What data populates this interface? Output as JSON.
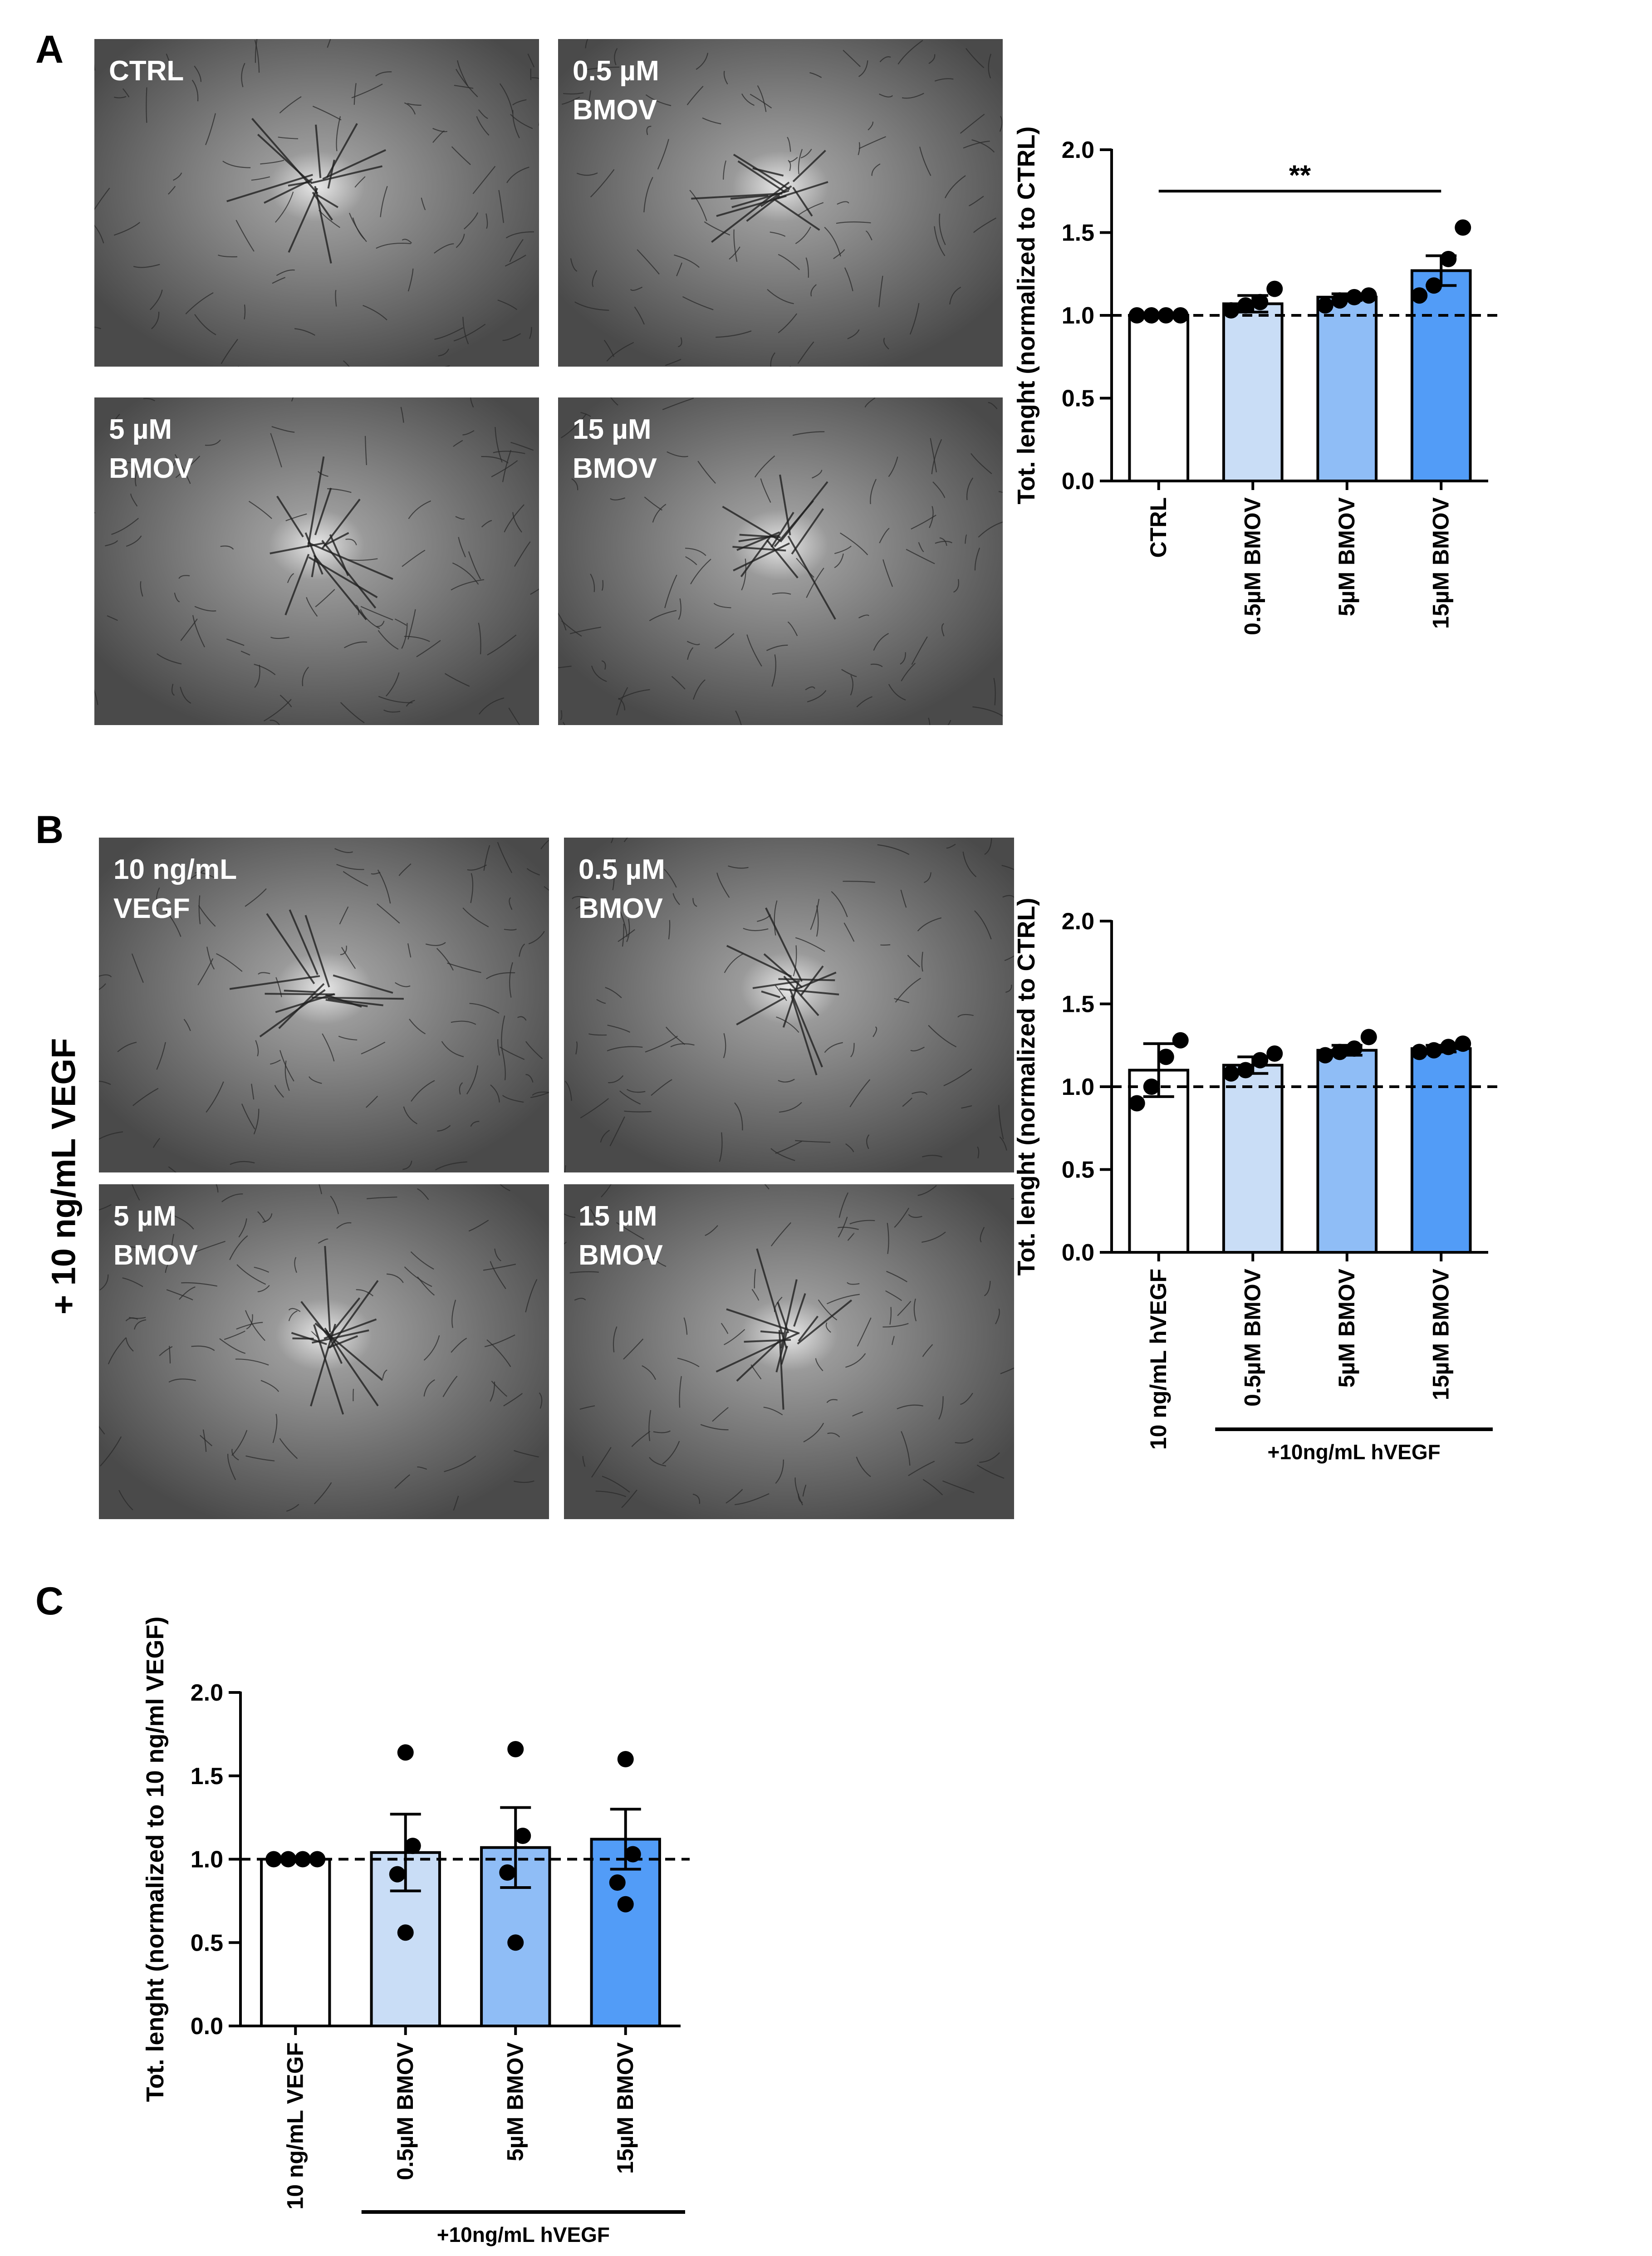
{
  "panels": {
    "A": {
      "letter": "A",
      "images": [
        {
          "label": "CTRL"
        },
        {
          "label": "0.5 µM\nBMOV"
        },
        {
          "label": "5 µM\nBMOV"
        },
        {
          "label": "15 µM\nBMOV"
        }
      ]
    },
    "B": {
      "letter": "B",
      "side_label": "+ 10 ng/mL VEGF",
      "images": [
        {
          "label": "10 ng/mL\nVEGF"
        },
        {
          "label": "0.5 µM\nBMOV"
        },
        {
          "label": "5 µM\nBMOV"
        },
        {
          "label": "15 µM\nBMOV"
        }
      ]
    },
    "C": {
      "letter": "C"
    }
  },
  "colors": {
    "bar_white": "#ffffff",
    "bar_light_blue": "#c9ddf6",
    "bar_mid_blue": "#8fbdf6",
    "bar_blue": "#529cf7",
    "point": "#000000"
  },
  "chart_data": [
    {
      "id": "A",
      "type": "bar",
      "categories": [
        "CTRL",
        "0.5µM BMOV",
        "5µM BMOV",
        "15µM BMOV"
      ],
      "values": [
        1.0,
        1.07,
        1.11,
        1.27
      ],
      "errors": [
        0.0,
        0.05,
        0.02,
        0.09
      ],
      "points": [
        [
          1.0,
          1.0,
          1.0,
          1.0
        ],
        [
          1.03,
          1.06,
          1.08,
          1.16
        ],
        [
          1.06,
          1.09,
          1.11,
          1.12
        ],
        [
          1.12,
          1.18,
          1.34,
          1.53
        ]
      ],
      "ylabel": "Tot. lenght (normalized to CTRL)",
      "ylim": [
        0,
        2.0
      ],
      "yticks": [
        "0.0",
        "0.5",
        "1.0",
        "1.5",
        "2.0"
      ],
      "reference_line": 1.0,
      "significance": {
        "label": "**",
        "from": 0,
        "to": 3
      },
      "group_label": ""
    },
    {
      "id": "B",
      "type": "bar",
      "categories": [
        "10 ng/mL hVEGF",
        "0.5µM BMOV",
        "5µM BMOV",
        "15µM BMOV"
      ],
      "values": [
        1.1,
        1.13,
        1.22,
        1.23
      ],
      "errors": [
        0.16,
        0.05,
        0.03,
        0.02
      ],
      "points": [
        [
          0.9,
          1.0,
          1.18,
          1.28
        ],
        [
          1.08,
          1.1,
          1.16,
          1.2
        ],
        [
          1.19,
          1.21,
          1.23,
          1.3
        ],
        [
          1.21,
          1.22,
          1.24,
          1.26
        ]
      ],
      "ylabel": "Tot. lenght (normalized to CTRL)",
      "ylim": [
        0,
        2.0
      ],
      "yticks": [
        "0.0",
        "0.5",
        "1.0",
        "1.5",
        "2.0"
      ],
      "reference_line": 1.0,
      "group_label": "+10ng/mL hVEGF"
    },
    {
      "id": "C",
      "type": "bar",
      "categories": [
        "10 ng/mL VEGF",
        "0.5µM BMOV",
        "5µM BMOV",
        "15µM BMOV"
      ],
      "values": [
        1.0,
        1.04,
        1.07,
        1.12
      ],
      "errors": [
        0.0,
        0.23,
        0.24,
        0.18
      ],
      "points": [
        [
          1.0,
          1.0,
          1.0,
          1.0
        ],
        [
          0.56,
          0.91,
          1.08,
          1.64
        ],
        [
          0.5,
          0.92,
          1.14,
          1.66
        ],
        [
          0.73,
          0.86,
          1.03,
          1.6
        ]
      ],
      "ylabel": "Tot. lenght (normalized to 10 ng/ml VEGF)",
      "ylim": [
        0,
        2.0
      ],
      "yticks": [
        "0.0",
        "0.5",
        "1.0",
        "1.5",
        "2.0"
      ],
      "reference_line": 1.0,
      "group_label": "+10ng/mL hVEGF"
    }
  ]
}
